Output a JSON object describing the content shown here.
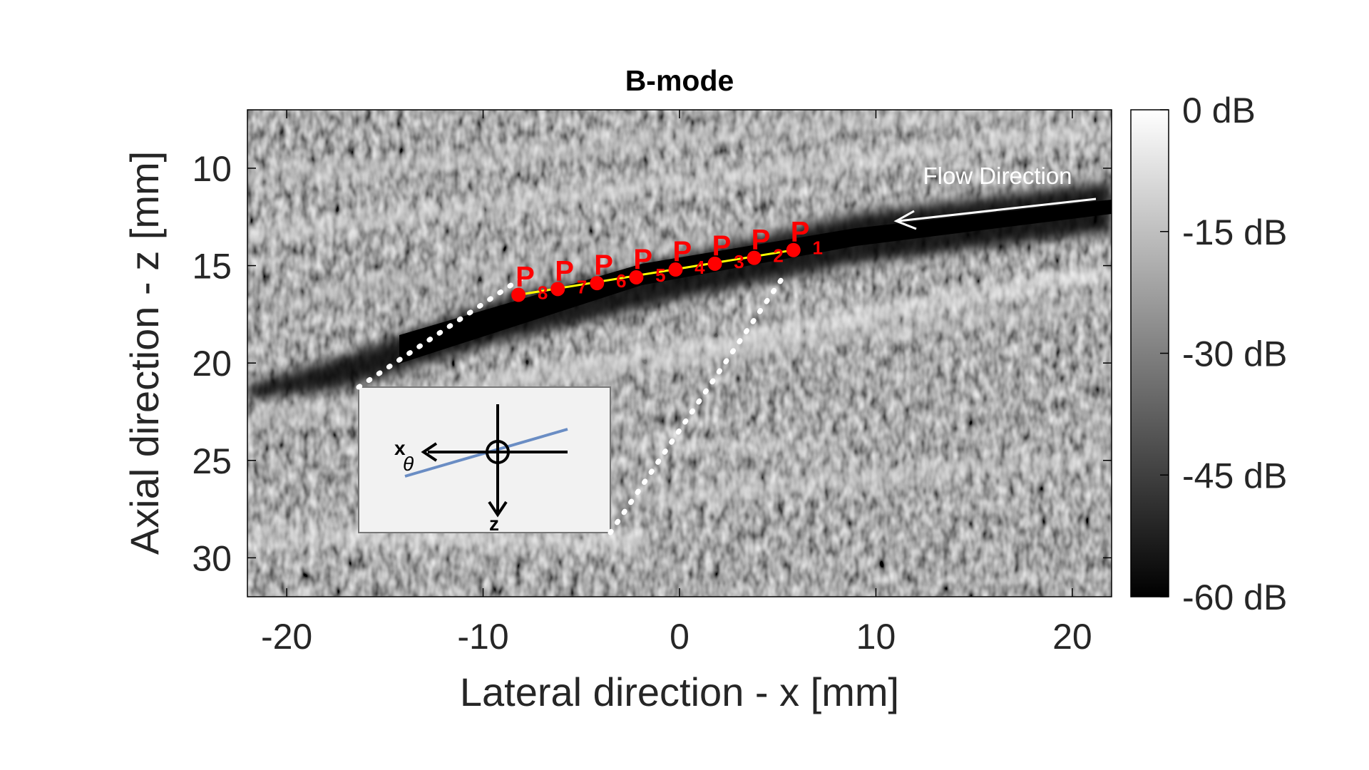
{
  "chart_data": {
    "type": "heatmap",
    "title": "B-mode",
    "xlabel": "Lateral direction - x [mm]",
    "ylabel": "Axial direction - z [mm]",
    "xlim": [
      -22,
      22
    ],
    "ylim": [
      32,
      7
    ],
    "x_ticks": [
      -20,
      -10,
      0,
      10,
      20
    ],
    "x_tick_labels": [
      "-20",
      "-10",
      "0",
      "10",
      "20"
    ],
    "y_ticks": [
      10,
      15,
      20,
      25,
      30
    ],
    "y_tick_labels": [
      "10",
      "15",
      "20",
      "25",
      "30"
    ],
    "colorbar": {
      "range": [
        -60,
        0
      ],
      "ticks": [
        0,
        -15,
        -30,
        -45,
        -60
      ],
      "tick_labels": [
        "0 dB",
        "-15 dB",
        "-30 dB",
        "-45 dB",
        "-60 dB"
      ],
      "colormap": "gray"
    },
    "annotations": {
      "flow_direction_label": "Flow Direction",
      "point_letter": "P",
      "points": [
        {
          "index": "1",
          "x": 5.8,
          "z": 14.2
        },
        {
          "index": "2",
          "x": 3.8,
          "z": 14.6
        },
        {
          "index": "3",
          "x": 1.8,
          "z": 14.9
        },
        {
          "index": "4",
          "x": -0.2,
          "z": 15.2
        },
        {
          "index": "5",
          "x": -2.2,
          "z": 15.6
        },
        {
          "index": "6",
          "x": -4.2,
          "z": 15.9
        },
        {
          "index": "7",
          "x": -6.2,
          "z": 16.2
        },
        {
          "index": "8",
          "x": -8.2,
          "z": 16.5
        }
      ]
    },
    "inset": {
      "x_axis_label": "x",
      "z_axis_label": "z",
      "angle_label": "θ"
    }
  },
  "colors": {
    "points": "#ff0000",
    "vessel_line": "#ffff00",
    "inset_line": "#6a8dc4",
    "inset_background": "#f2f2f2"
  }
}
